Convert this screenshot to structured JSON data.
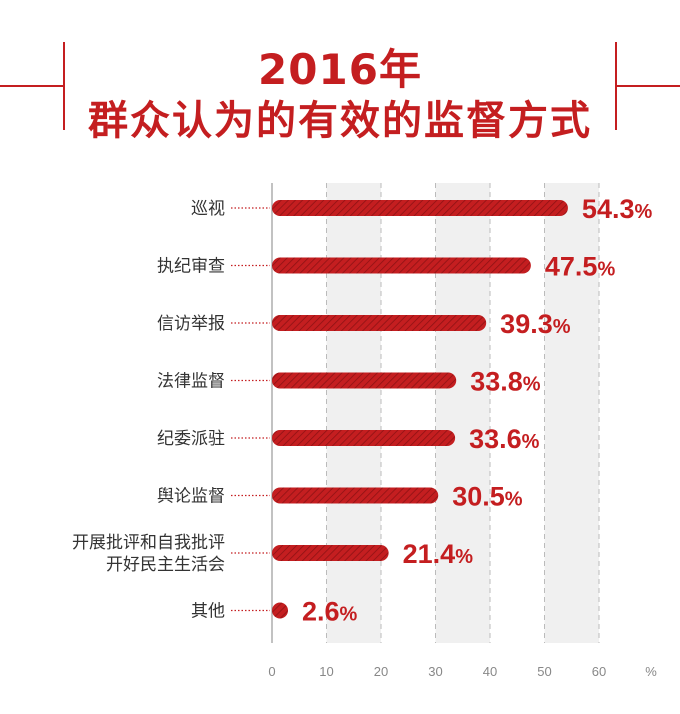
{
  "title": {
    "line1": "2016年",
    "line2": "群众认为的有效的监督方式"
  },
  "colors": {
    "accent": "#c41e20",
    "band": "#f0f0f0",
    "grid": "#bbbbbb",
    "axis": "#999999"
  },
  "chart_data": {
    "type": "bar",
    "orientation": "horizontal",
    "categories": [
      [
        "巡视"
      ],
      [
        "执纪审查"
      ],
      [
        "信访举报"
      ],
      [
        "法律监督"
      ],
      [
        "纪委派驻"
      ],
      [
        "舆论监督"
      ],
      [
        "开展批评和自我批评",
        "开好民主生活会"
      ],
      [
        "其他"
      ]
    ],
    "values": [
      54.3,
      47.5,
      39.3,
      33.8,
      33.6,
      30.5,
      21.4,
      2.6
    ],
    "value_labels": [
      "54.3",
      "47.5",
      "39.3",
      "33.8",
      "33.6",
      "30.5",
      "21.4",
      "2.6"
    ],
    "value_suffix": "%",
    "x_ticks": [
      "0",
      "10",
      "20",
      "30",
      "40",
      "50",
      "60"
    ],
    "x_unit": "%",
    "xlim": [
      0,
      70
    ],
    "grid": true
  }
}
